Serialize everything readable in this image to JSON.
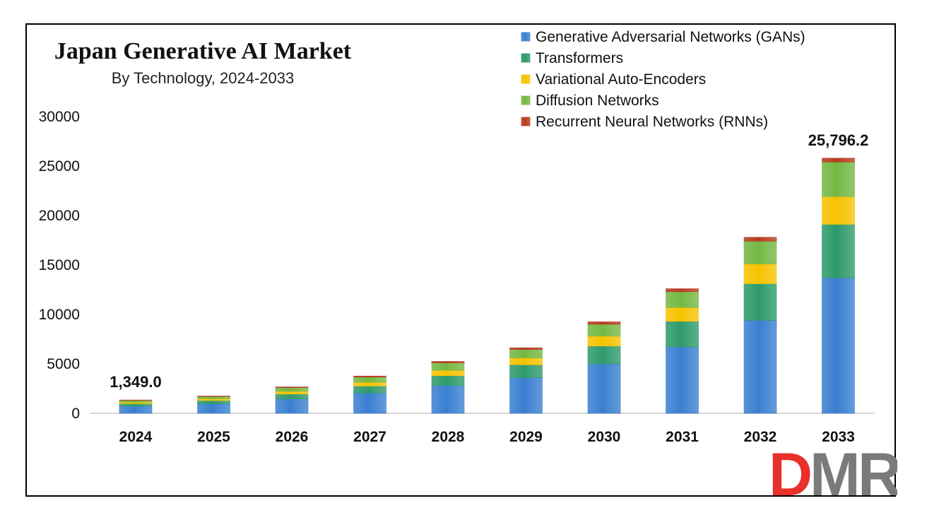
{
  "chart_data": {
    "type": "bar",
    "stacked": true,
    "title": "Japan Generative AI Market",
    "subtitle": "By Technology,  2024-2033",
    "xlabel": "",
    "ylabel": "",
    "ylim": [
      0,
      30000
    ],
    "yticks": [
      0,
      5000,
      10000,
      15000,
      20000,
      25000,
      30000
    ],
    "categories": [
      "2024",
      "2025",
      "2026",
      "2027",
      "2028",
      "2029",
      "2030",
      "2031",
      "2032",
      "2033"
    ],
    "series": [
      {
        "name": "Generative Adversarial Networks (GANs)",
        "color": "#3a7fd0",
        "values": [
          720,
          950,
          1450,
          2050,
          2800,
          3600,
          5000,
          6700,
          9400,
          13700
        ]
      },
      {
        "name": "Transformers",
        "color": "#2e9a6c",
        "values": [
          260,
          340,
          500,
          700,
          1000,
          1300,
          1800,
          2600,
          3700,
          5400
        ]
      },
      {
        "name": "Variational Auto-Encoders",
        "color": "#f7c200",
        "values": [
          140,
          180,
          270,
          390,
          550,
          700,
          1000,
          1400,
          2000,
          2800
        ]
      },
      {
        "name": "Diffusion Networks",
        "color": "#74b843",
        "values": [
          190,
          230,
          370,
          520,
          750,
          850,
          1200,
          1600,
          2300,
          3500
        ]
      },
      {
        "name": "Recurrent Neural Networks (RNNs)",
        "color": "#b73a1e",
        "values": [
          39,
          50,
          80,
          110,
          150,
          180,
          250,
          300,
          400,
          396.2
        ]
      }
    ],
    "data_labels": [
      {
        "category": "2024",
        "text": "1,349.0"
      },
      {
        "category": "2033",
        "text": "25,796.2"
      }
    ],
    "legend_position": "top-right",
    "grid": false
  },
  "logo": {
    "text_d": "D",
    "text_m": "M",
    "text_r": "R",
    "color_dm": "#e8312b",
    "color_r": "#7a7a7a"
  }
}
